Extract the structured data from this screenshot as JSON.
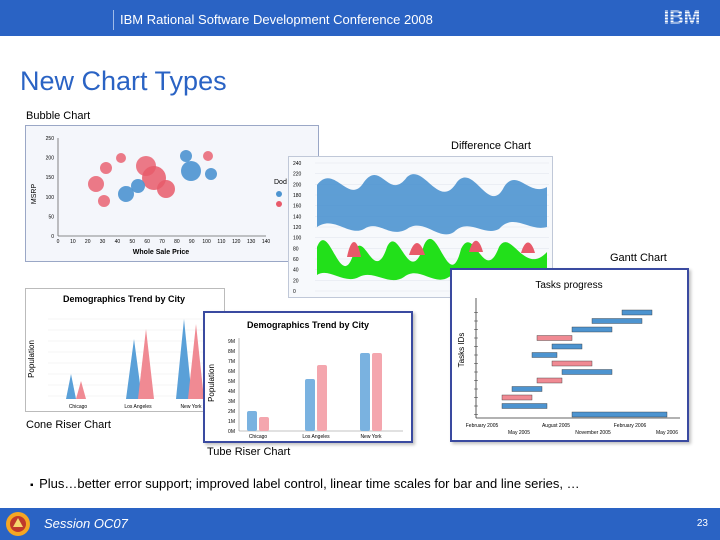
{
  "header": {
    "conference": "IBM Rational Software Development Conference 2008",
    "logo_text": "IBM"
  },
  "slide": {
    "title": "New Chart Types"
  },
  "labels": {
    "bubble": "Bubble Chart",
    "difference": "Difference Chart",
    "gantt": "Gantt Chart",
    "cone": "Cone Riser Chart",
    "tube": "Tube Riser Chart"
  },
  "bubble_chart": {
    "ylabel": "MSRP",
    "xlabel": "Whole Sale Price",
    "y_ticks": [
      "0",
      "50",
      "100",
      "150",
      "200",
      "250"
    ],
    "x_ticks": [
      "0",
      "10",
      "20",
      "30",
      "40",
      "50",
      "60",
      "70",
      "80",
      "90",
      "100",
      "110",
      "120",
      "130",
      "140"
    ],
    "legend_partial": "Dod"
  },
  "difference_chart": {
    "y_ticks": [
      "0",
      "20",
      "40",
      "60",
      "80",
      "100",
      "120",
      "140",
      "160",
      "180",
      "200",
      "220",
      "240"
    ]
  },
  "gantt_chart": {
    "title": "Tasks progress",
    "ylabel": "Tasks IDs",
    "x_ticks": [
      "February 2005",
      "May 2005",
      "August 2005",
      "November 2005",
      "February 2006",
      "May 2006"
    ]
  },
  "cone_chart": {
    "title": "Demographics Trend by City",
    "ylabel": "Population",
    "categories": [
      "Chicago",
      "Los Angeles",
      "New York"
    ]
  },
  "tube_chart": {
    "title": "Demographics Trend by City",
    "ylabel": "Population",
    "categories": [
      "Chicago",
      "Los Angeles",
      "New York"
    ],
    "y_ticks": [
      "0M",
      "1M",
      "2M",
      "3M",
      "4M",
      "5M",
      "6M",
      "7M",
      "8M",
      "9M"
    ]
  },
  "bullet": {
    "text": "Plus…better error support; improved label control, linear time scales for bar and line series, …"
  },
  "footer": {
    "session": "Session OC07",
    "page": "23"
  },
  "colors": {
    "brand_blue": "#2a63c4",
    "bubble_blue": "#4d94d0",
    "bubble_red": "#e85a6a",
    "green": "#22e01a",
    "pink": "#f08a93"
  }
}
